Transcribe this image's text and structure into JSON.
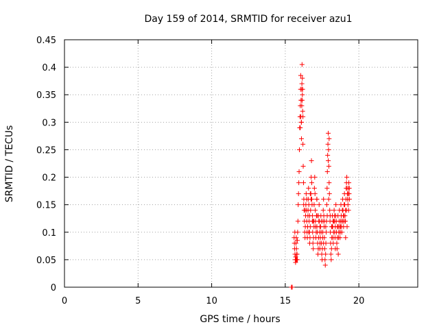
{
  "chart_data": {
    "type": "scatter",
    "title": "Day 159 of 2014, SRMTID for receiver azu1",
    "xlabel": "GPS time / hours",
    "ylabel": "SRMTID / TECUs",
    "xlim": [
      0,
      24
    ],
    "ylim": [
      0,
      0.45
    ],
    "xticks": [
      0,
      5,
      10,
      15,
      20
    ],
    "yticks": [
      0,
      0.05,
      0.1,
      0.15,
      0.2,
      0.25,
      0.3,
      0.35,
      0.4,
      0.45
    ],
    "xtick_labels": [
      "0",
      "5",
      "10",
      "15",
      "20"
    ],
    "ytick_labels": [
      "0",
      "0.05",
      "0.1",
      "0.15",
      "0.2",
      "0.25",
      "0.3",
      "0.35",
      "0.4",
      "0.45"
    ],
    "grid": true,
    "marker": "+",
    "color": "#ff0000",
    "series": [
      {
        "name": "SRMTID",
        "points": [
          [
            15.42,
            0.0
          ],
          [
            15.45,
            0.0
          ],
          [
            15.47,
            0.0
          ],
          [
            15.6,
            0.09
          ],
          [
            15.62,
            0.08
          ],
          [
            15.63,
            0.07
          ],
          [
            15.65,
            0.1
          ],
          [
            15.66,
            0.06
          ],
          [
            15.68,
            0.05
          ],
          [
            15.7,
            0.045
          ],
          [
            15.71,
            0.055
          ],
          [
            15.73,
            0.08
          ],
          [
            15.75,
            0.09
          ],
          [
            15.76,
            0.07
          ],
          [
            15.78,
            0.05
          ],
          [
            15.8,
            0.06
          ],
          [
            15.82,
            0.085
          ],
          [
            15.84,
            0.1
          ],
          [
            15.86,
            0.12
          ],
          [
            15.88,
            0.15
          ],
          [
            15.9,
            0.17
          ],
          [
            15.92,
            0.19
          ],
          [
            15.94,
            0.21
          ],
          [
            15.96,
            0.25
          ],
          [
            15.98,
            0.29
          ],
          [
            16.0,
            0.31
          ],
          [
            16.02,
            0.33
          ],
          [
            16.04,
            0.36
          ],
          [
            16.05,
            0.385
          ],
          [
            16.07,
            0.34
          ],
          [
            16.09,
            0.3
          ],
          [
            16.1,
            0.27
          ],
          [
            16.12,
            0.36
          ],
          [
            16.14,
            0.405
          ],
          [
            16.16,
            0.35
          ],
          [
            16.18,
            0.32
          ],
          [
            16.2,
            0.26
          ],
          [
            16.22,
            0.22
          ],
          [
            16.24,
            0.19
          ],
          [
            16.26,
            0.16
          ],
          [
            16.28,
            0.14
          ],
          [
            16.3,
            0.12
          ],
          [
            16.32,
            0.1
          ],
          [
            16.34,
            0.09
          ],
          [
            16.36,
            0.11
          ],
          [
            16.38,
            0.13
          ],
          [
            16.4,
            0.15
          ],
          [
            16.42,
            0.17
          ],
          [
            16.44,
            0.14
          ],
          [
            16.46,
            0.12
          ],
          [
            16.48,
            0.1
          ],
          [
            16.5,
            0.09
          ],
          [
            16.52,
            0.11
          ],
          [
            16.54,
            0.13
          ],
          [
            16.56,
            0.16
          ],
          [
            16.58,
            0.18
          ],
          [
            16.6,
            0.15
          ],
          [
            16.62,
            0.12
          ],
          [
            16.64,
            0.1
          ],
          [
            16.66,
            0.08
          ],
          [
            16.68,
            0.09
          ],
          [
            16.7,
            0.11
          ],
          [
            16.72,
            0.14
          ],
          [
            16.74,
            0.17
          ],
          [
            16.76,
            0.2
          ],
          [
            16.78,
            0.23
          ],
          [
            16.8,
            0.19
          ],
          [
            16.82,
            0.15
          ],
          [
            16.84,
            0.12
          ],
          [
            16.86,
            0.1
          ],
          [
            16.88,
            0.08
          ],
          [
            16.9,
            0.07
          ],
          [
            16.92,
            0.09
          ],
          [
            16.94,
            0.12
          ],
          [
            16.96,
            0.15
          ],
          [
            16.98,
            0.18
          ],
          [
            17.0,
            0.2
          ],
          [
            17.02,
            0.17
          ],
          [
            17.04,
            0.14
          ],
          [
            17.06,
            0.11
          ],
          [
            17.08,
            0.09
          ],
          [
            17.1,
            0.1
          ],
          [
            17.12,
            0.13
          ],
          [
            17.14,
            0.16
          ],
          [
            17.16,
            0.13
          ],
          [
            17.18,
            0.1
          ],
          [
            17.2,
            0.08
          ],
          [
            17.22,
            0.06
          ],
          [
            17.24,
            0.07
          ],
          [
            17.26,
            0.09
          ],
          [
            17.28,
            0.12
          ],
          [
            17.3,
            0.15
          ],
          [
            17.32,
            0.12
          ],
          [
            17.34,
            0.1
          ],
          [
            17.36,
            0.08
          ],
          [
            17.38,
            0.09
          ],
          [
            17.4,
            0.11
          ],
          [
            17.42,
            0.13
          ],
          [
            17.44,
            0.1
          ],
          [
            17.46,
            0.08
          ],
          [
            17.48,
            0.06
          ],
          [
            17.5,
            0.05
          ],
          [
            17.52,
            0.07
          ],
          [
            17.54,
            0.09
          ],
          [
            17.56,
            0.12
          ],
          [
            17.58,
            0.14
          ],
          [
            17.6,
            0.16
          ],
          [
            17.62,
            0.13
          ],
          [
            17.64,
            0.11
          ],
          [
            17.66,
            0.09
          ],
          [
            17.68,
            0.07
          ],
          [
            17.7,
            0.05
          ],
          [
            17.72,
            0.04
          ],
          [
            17.74,
            0.06
          ],
          [
            17.76,
            0.08
          ],
          [
            17.78,
            0.1
          ],
          [
            17.8,
            0.12
          ],
          [
            17.82,
            0.15
          ],
          [
            17.84,
            0.18
          ],
          [
            17.86,
            0.21
          ],
          [
            17.88,
            0.24
          ],
          [
            17.9,
            0.26
          ],
          [
            17.92,
            0.28
          ],
          [
            17.94,
            0.25
          ],
          [
            17.96,
            0.22
          ],
          [
            17.98,
            0.19
          ],
          [
            18.0,
            0.17
          ],
          [
            18.02,
            0.14
          ],
          [
            18.04,
            0.12
          ],
          [
            18.06,
            0.1
          ],
          [
            18.08,
            0.08
          ],
          [
            18.1,
            0.06
          ],
          [
            18.12,
            0.05
          ],
          [
            18.14,
            0.07
          ],
          [
            18.16,
            0.09
          ],
          [
            18.18,
            0.11
          ],
          [
            18.2,
            0.13
          ],
          [
            18.22,
            0.11
          ],
          [
            18.24,
            0.09
          ],
          [
            18.26,
            0.08
          ],
          [
            18.28,
            0.1
          ],
          [
            18.3,
            0.12
          ],
          [
            18.32,
            0.14
          ],
          [
            18.34,
            0.12
          ],
          [
            18.36,
            0.1
          ],
          [
            18.38,
            0.09
          ],
          [
            18.4,
            0.11
          ],
          [
            18.42,
            0.13
          ],
          [
            18.44,
            0.15
          ],
          [
            18.46,
            0.12
          ],
          [
            18.48,
            0.1
          ],
          [
            18.5,
            0.08
          ],
          [
            18.52,
            0.07
          ],
          [
            18.54,
            0.09
          ],
          [
            18.56,
            0.11
          ],
          [
            18.58,
            0.13
          ],
          [
            18.6,
            0.11
          ],
          [
            18.62,
            0.09
          ],
          [
            18.64,
            0.1
          ],
          [
            18.66,
            0.12
          ],
          [
            18.68,
            0.14
          ],
          [
            18.7,
            0.11
          ],
          [
            18.72,
            0.09
          ],
          [
            18.74,
            0.1
          ],
          [
            18.76,
            0.12
          ],
          [
            18.78,
            0.15
          ],
          [
            18.8,
            0.13
          ],
          [
            18.82,
            0.11
          ],
          [
            18.84,
            0.1
          ],
          [
            18.86,
            0.12
          ],
          [
            18.88,
            0.14
          ],
          [
            18.9,
            0.16
          ],
          [
            18.92,
            0.14
          ],
          [
            18.94,
            0.12
          ],
          [
            18.96,
            0.11
          ],
          [
            18.98,
            0.13
          ],
          [
            19.0,
            0.15
          ],
          [
            19.02,
            0.17
          ],
          [
            19.04,
            0.15
          ],
          [
            19.06,
            0.13
          ],
          [
            19.08,
            0.12
          ],
          [
            19.1,
            0.14
          ],
          [
            19.12,
            0.16
          ],
          [
            19.14,
            0.18
          ],
          [
            19.16,
            0.19
          ],
          [
            19.18,
            0.2
          ],
          [
            19.2,
            0.18
          ],
          [
            19.22,
            0.17
          ],
          [
            19.24,
            0.16
          ],
          [
            19.26,
            0.15
          ],
          [
            19.28,
            0.17
          ],
          [
            19.3,
            0.18
          ],
          [
            19.32,
            0.19
          ],
          [
            19.34,
            0.17
          ],
          [
            19.36,
            0.16
          ],
          [
            16.1,
            0.3
          ],
          [
            16.12,
            0.33
          ],
          [
            16.15,
            0.34
          ],
          [
            16.18,
            0.36
          ],
          [
            16.2,
            0.31
          ],
          [
            16.25,
            0.15
          ],
          [
            16.35,
            0.14
          ],
          [
            16.45,
            0.16
          ],
          [
            16.55,
            0.14
          ],
          [
            16.65,
            0.13
          ],
          [
            16.75,
            0.16
          ],
          [
            16.85,
            0.13
          ],
          [
            16.95,
            0.11
          ],
          [
            17.05,
            0.12
          ],
          [
            17.15,
            0.11
          ],
          [
            17.25,
            0.13
          ],
          [
            17.35,
            0.11
          ],
          [
            17.45,
            0.12
          ],
          [
            17.55,
            0.1
          ],
          [
            17.65,
            0.12
          ],
          [
            17.75,
            0.11
          ],
          [
            17.85,
            0.13
          ],
          [
            17.95,
            0.16
          ],
          [
            18.05,
            0.13
          ],
          [
            18.15,
            0.11
          ],
          [
            18.25,
            0.12
          ],
          [
            18.35,
            0.13
          ],
          [
            18.45,
            0.12
          ],
          [
            18.55,
            0.11
          ],
          [
            18.65,
            0.1
          ],
          [
            18.75,
            0.11
          ],
          [
            18.85,
            0.12
          ],
          [
            18.95,
            0.13
          ],
          [
            19.05,
            0.12
          ],
          [
            19.15,
            0.14
          ],
          [
            19.25,
            0.16
          ],
          [
            19.35,
            0.18
          ],
          [
            15.75,
            0.05
          ],
          [
            15.78,
            0.06
          ],
          [
            15.82,
            0.05
          ],
          [
            16.88,
            0.12
          ],
          [
            17.15,
            0.16
          ],
          [
            17.35,
            0.07
          ],
          [
            17.6,
            0.08
          ],
          [
            17.92,
            0.23
          ],
          [
            17.98,
            0.27
          ],
          [
            18.4,
            0.07
          ],
          [
            18.6,
            0.06
          ],
          [
            19.1,
            0.09
          ],
          [
            19.2,
            0.11
          ],
          [
            19.3,
            0.14
          ],
          [
            16.02,
            0.29
          ],
          [
            16.06,
            0.31
          ],
          [
            16.08,
            0.34
          ],
          [
            16.13,
            0.37
          ],
          [
            16.16,
            0.38
          ],
          [
            16.6,
            0.1
          ],
          [
            16.7,
            0.17
          ],
          [
            16.8,
            0.16
          ]
        ]
      }
    ]
  }
}
